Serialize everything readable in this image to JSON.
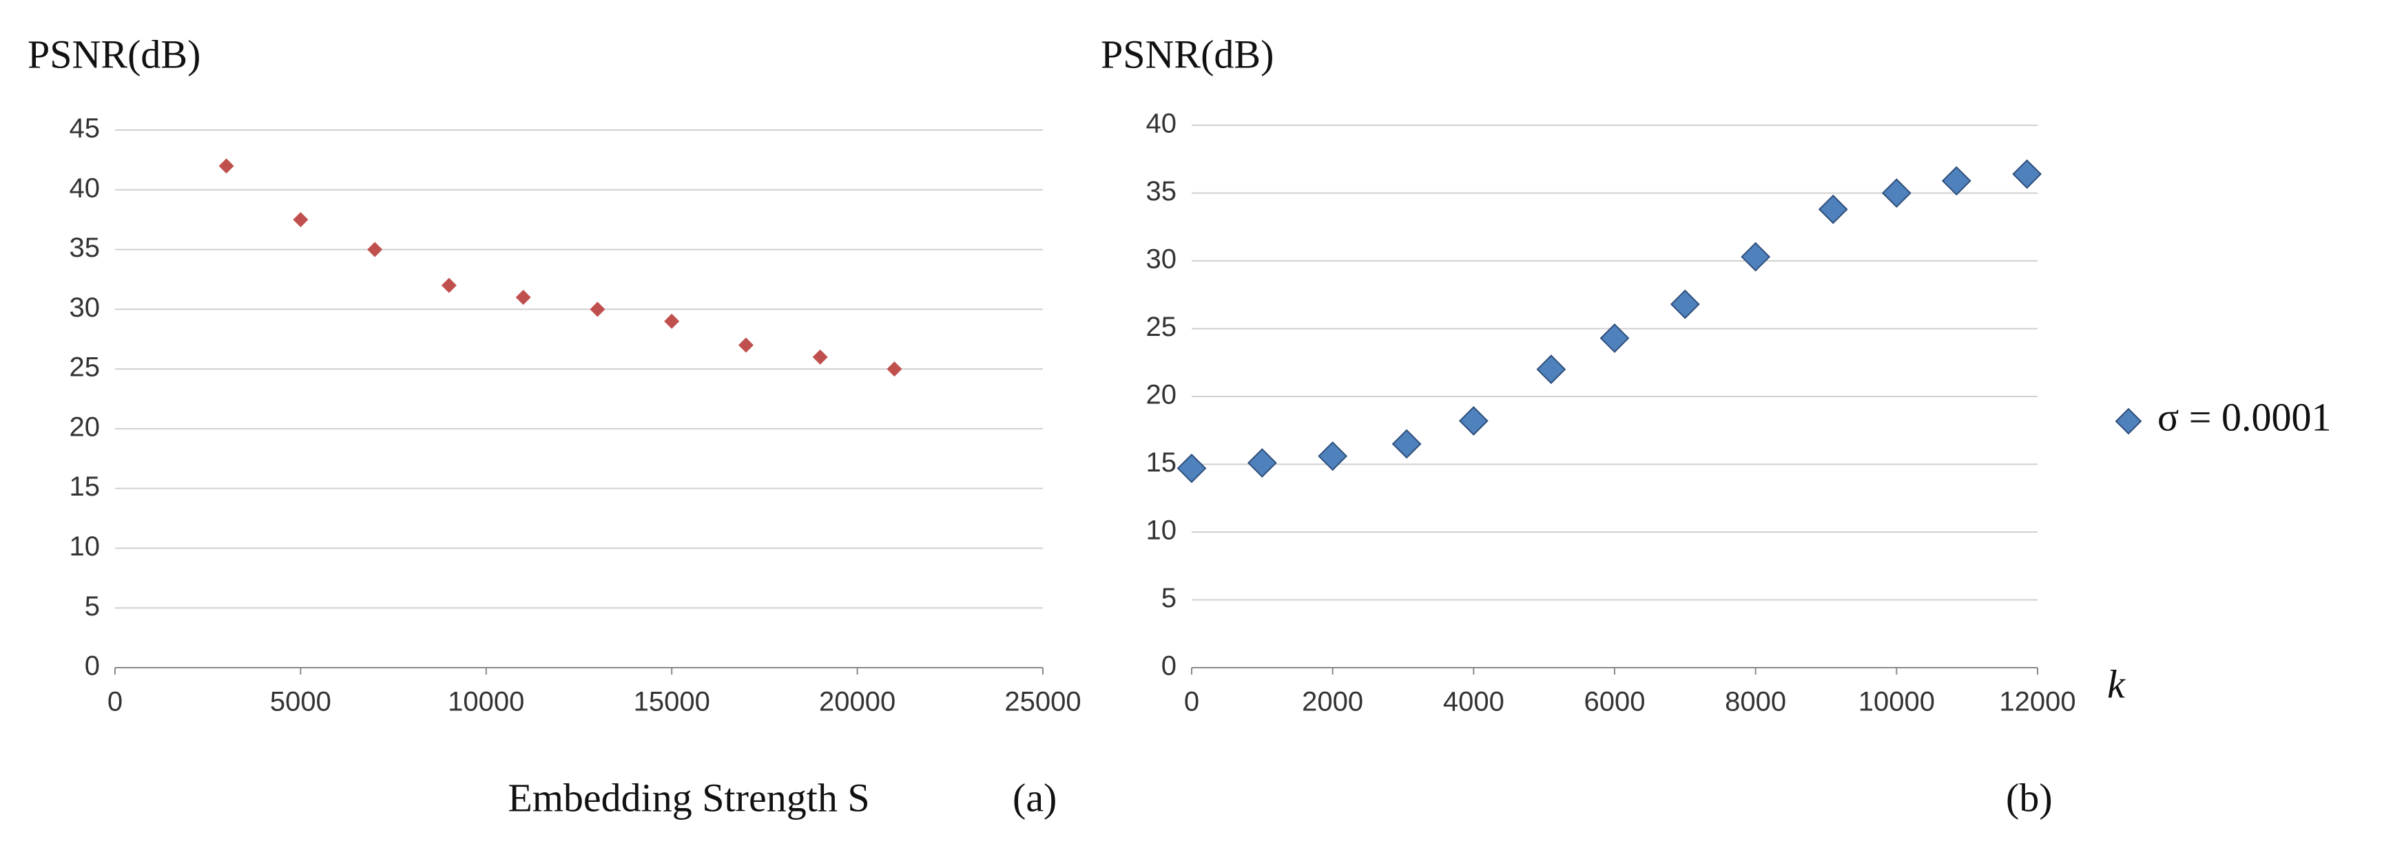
{
  "chart_data": [
    {
      "type": "scatter",
      "y_label": "PSNR(dB)",
      "x_label": "Embedding Strength S",
      "panel_label": "(a)",
      "x": [
        3000,
        5000,
        7000,
        9000,
        11000,
        13000,
        15000,
        17000,
        19000,
        21000
      ],
      "values": [
        42,
        37.5,
        35,
        32,
        31,
        30,
        29,
        27,
        26,
        25
      ],
      "color": "#c0504d",
      "xlim": [
        0,
        25000
      ],
      "ylim": [
        0,
        45
      ],
      "xticks": [
        0,
        5000,
        10000,
        15000,
        20000,
        25000
      ],
      "yticks": [
        0,
        5,
        10,
        15,
        20,
        25,
        30,
        35,
        40,
        45
      ],
      "grid": true
    },
    {
      "type": "scatter",
      "y_label": "PSNR(dB)",
      "x_label": "k",
      "panel_label": "(b)",
      "x": [
        0,
        1000,
        2000,
        3050,
        4000,
        5100,
        6000,
        7000,
        8000,
        9100,
        10000,
        10850,
        11850
      ],
      "series": [
        {
          "name": "σ = 0.0001",
          "color": "#4f81bd",
          "values": [
            14.7,
            15.1,
            15.6,
            16.5,
            18.2,
            22,
            24.3,
            26.8,
            30.3,
            33.8,
            35,
            35.9,
            36.4
          ]
        }
      ],
      "xlim": [
        0,
        12000
      ],
      "ylim": [
        0,
        40
      ],
      "xticks": [
        0,
        2000,
        4000,
        6000,
        8000,
        10000,
        12000
      ],
      "yticks": [
        0,
        5,
        10,
        15,
        20,
        25,
        30,
        35,
        40
      ],
      "grid": true,
      "legend": "right"
    }
  ]
}
